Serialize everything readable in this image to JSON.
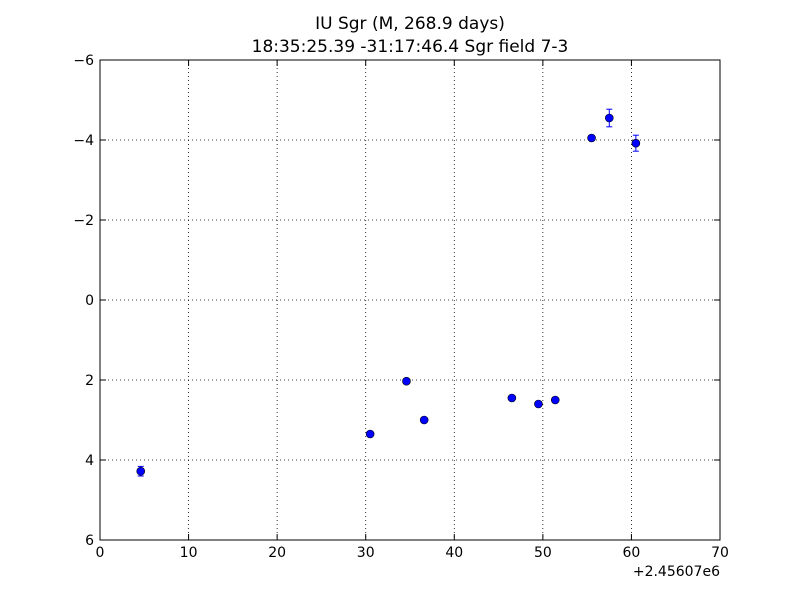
{
  "chart_data": {
    "type": "scatter",
    "title": "IU Sgr  (M, 268.9 days)",
    "subtitle": "18:35:25.39 -31:17:46.4 Sgr field 7-3",
    "xlabel": "",
    "ylabel": "",
    "x_offset_label": "+2.45607e6",
    "xlim": [
      0,
      70
    ],
    "ylim": [
      6,
      -6
    ],
    "y_inverted": true,
    "grid": true,
    "marker_color": "#0000ff",
    "xticks": [
      0,
      10,
      20,
      30,
      40,
      50,
      60,
      70
    ],
    "yticks": [
      -6,
      -4,
      -2,
      0,
      2,
      4,
      6
    ],
    "xtick_labels": [
      "0",
      "10",
      "20",
      "30",
      "40",
      "50",
      "60",
      "70"
    ],
    "ytick_labels": [
      "−6",
      "−4",
      "−2",
      "0",
      "2",
      "4",
      "6"
    ],
    "points": [
      {
        "x": 4.6,
        "y": 4.28,
        "err": 0.12
      },
      {
        "x": 30.5,
        "y": 3.35,
        "err": 0.06
      },
      {
        "x": 34.6,
        "y": 2.03,
        "err": 0.05
      },
      {
        "x": 36.6,
        "y": 3.0,
        "err": 0.05
      },
      {
        "x": 46.5,
        "y": 2.45,
        "err": 0.05
      },
      {
        "x": 49.5,
        "y": 2.6,
        "err": 0.05
      },
      {
        "x": 51.4,
        "y": 2.5,
        "err": 0.05
      },
      {
        "x": 55.5,
        "y": -4.05,
        "err": 0.06
      },
      {
        "x": 57.5,
        "y": -4.55,
        "err": 0.22
      },
      {
        "x": 60.5,
        "y": -3.92,
        "err": 0.2
      }
    ]
  }
}
